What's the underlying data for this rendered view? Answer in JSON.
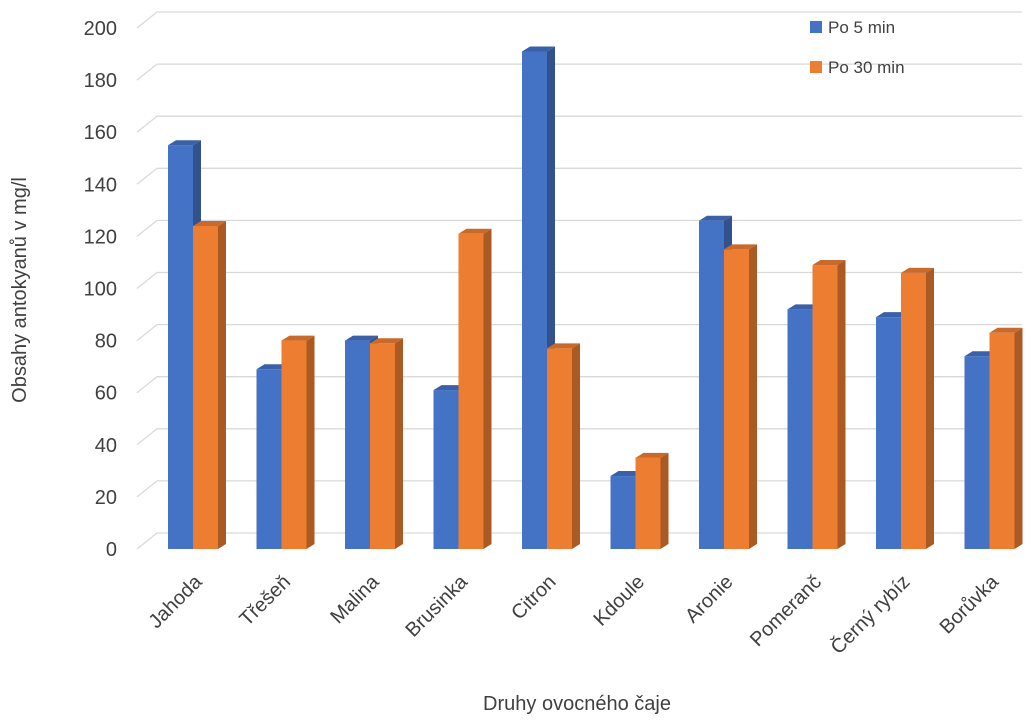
{
  "chart_data": {
    "type": "bar",
    "title": "",
    "xlabel": "Druhy ovocného čaje",
    "ylabel": "Obsahy antokyanů v mg/l",
    "ylim": [
      0,
      200
    ],
    "yticks": [
      0,
      20,
      40,
      60,
      80,
      100,
      120,
      140,
      160,
      180,
      200
    ],
    "grid": true,
    "legend_position": "top-right",
    "categories": [
      "Jahoda",
      "Třešeň",
      "Malina",
      "Brusinka",
      "Citron",
      "Kdoule",
      "Aronie",
      "Pomeranč",
      "Černý rybíz",
      "Borůvka"
    ],
    "series": [
      {
        "name": "Po 5 min",
        "color": "#4472C4",
        "values": [
          155,
          69,
          80,
          61,
          191,
          28,
          126,
          92,
          89,
          74
        ]
      },
      {
        "name": "Po 30 min",
        "color": "#ED7D31",
        "values": [
          124,
          80,
          79,
          121,
          77,
          35,
          115,
          109,
          106,
          83
        ]
      }
    ]
  }
}
